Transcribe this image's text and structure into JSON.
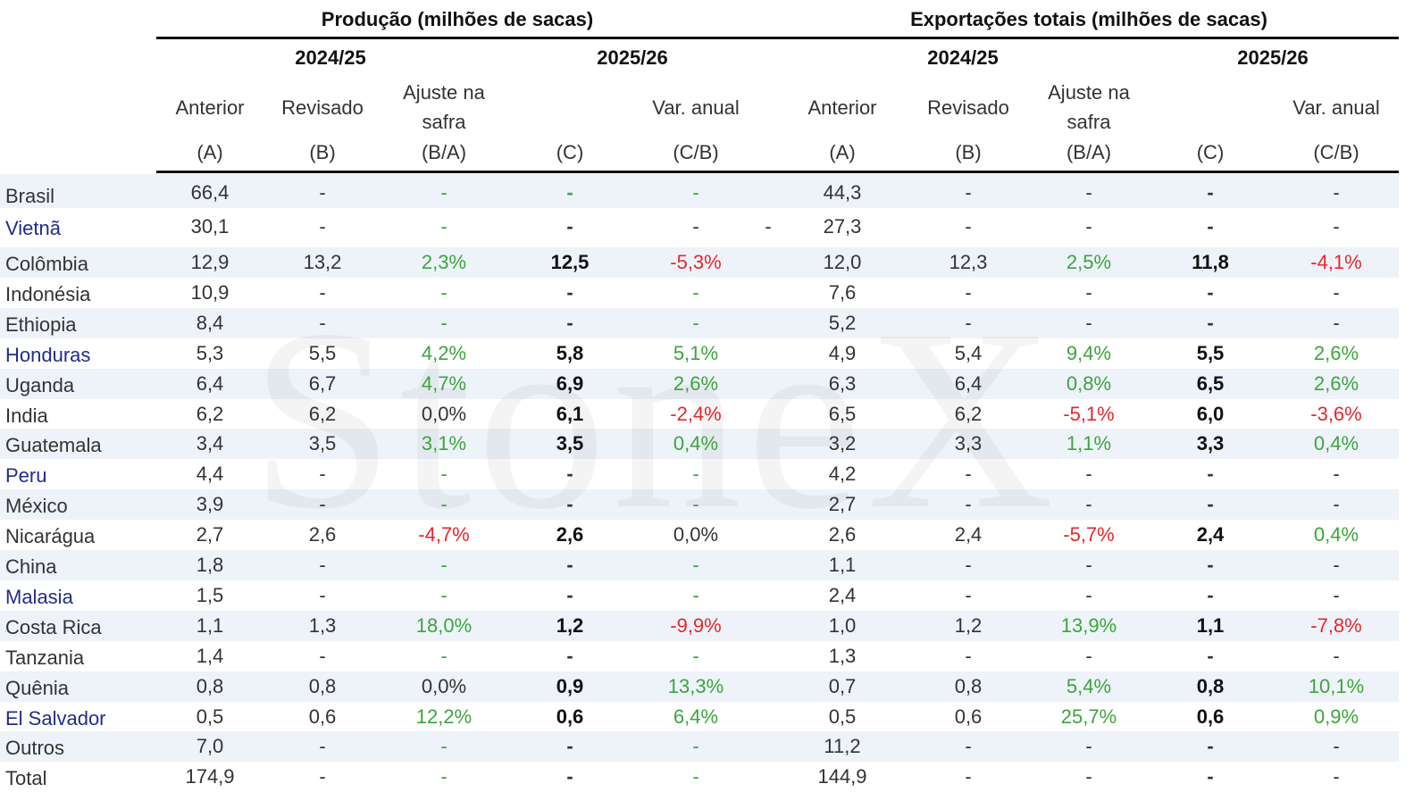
{
  "header": {
    "groups": [
      "Produção (milhões de sacas)",
      "Exportações totais (milhões de sacas)"
    ],
    "years": [
      "2024/25",
      "2025/26",
      "2024/25",
      "2025/26"
    ],
    "columns": [
      [
        "Anterior",
        "(A)"
      ],
      [
        "Revisado",
        "(B)"
      ],
      [
        "Ajuste na",
        "safra",
        "(B/A)"
      ],
      [
        "(C)"
      ],
      [
        "Var. anual",
        "(C/B)"
      ],
      [
        "Anterior",
        "(A)"
      ],
      [
        "Revisado",
        "(B)"
      ],
      [
        "Ajuste na",
        "safra",
        "(B/A)"
      ],
      [
        "(C)"
      ],
      [
        "Var. anual",
        "(C/B)"
      ]
    ]
  },
  "palette": {
    "k": "#333333",
    "g": "#3ca53c",
    "r": "#e8262a",
    "b": "#1f2d8c",
    "d": "#111111"
  },
  "bold_columns": [
    3,
    8
  ],
  "rows": [
    {
      "name": "Brasil",
      "name_tone": "k",
      "cells": [
        "66,4",
        "-",
        "-",
        "-",
        "-",
        "44,3",
        "-",
        "-",
        "-",
        "-"
      ],
      "tones": "kkgggkkkkk"
    },
    {
      "name": "Vietnã",
      "name_tone": "b",
      "cells": [
        "30,1",
        "-",
        "-",
        "-",
        "-",
        "27,3",
        "-",
        "-",
        "-",
        "-"
      ],
      "extra": "-",
      "tones": "kkgkkkkkkk"
    },
    {
      "name": "Colômbia",
      "name_tone": "k",
      "cells": [
        "12,9",
        "13,2",
        "2,3%",
        "12,5",
        "-5,3%",
        "12,0",
        "12,3",
        "2,5%",
        "11,8",
        "-4,1%"
      ],
      "tones": "kkgdrkkgdr"
    },
    {
      "name": "Indonésia",
      "name_tone": "k",
      "cells": [
        "10,9",
        "-",
        "-",
        "-",
        "-",
        "7,6",
        "-",
        "-",
        "-",
        "-"
      ],
      "tones": "kkgkgkkkkk"
    },
    {
      "name": "Ethiopia",
      "name_tone": "k",
      "cells": [
        "8,4",
        "-",
        "-",
        "-",
        "-",
        "5,2",
        "-",
        "-",
        "-",
        "-"
      ],
      "tones": "kkgkgkkkkk"
    },
    {
      "name": "Honduras",
      "name_tone": "b",
      "cells": [
        "5,3",
        "5,5",
        "4,2%",
        "5,8",
        "5,1%",
        "4,9",
        "5,4",
        "9,4%",
        "5,5",
        "2,6%"
      ],
      "tones": "kkgdgkkgdg"
    },
    {
      "name": "Uganda",
      "name_tone": "k",
      "cells": [
        "6,4",
        "6,7",
        "4,7%",
        "6,9",
        "2,6%",
        "6,3",
        "6,4",
        "0,8%",
        "6,5",
        "2,6%"
      ],
      "tones": "kkgdgkkgdg"
    },
    {
      "name": "India",
      "name_tone": "k",
      "cells": [
        "6,2",
        "6,2",
        "0,0%",
        "6,1",
        "-2,4%",
        "6,5",
        "6,2",
        "-5,1%",
        "6,0",
        "-3,6%"
      ],
      "tones": "kkkdrkkrdr"
    },
    {
      "name": "Guatemala",
      "name_tone": "k",
      "cells": [
        "3,4",
        "3,5",
        "3,1%",
        "3,5",
        "0,4%",
        "3,2",
        "3,3",
        "1,1%",
        "3,3",
        "0,4%"
      ],
      "tones": "kkgdgkkgdg"
    },
    {
      "name": "Peru",
      "name_tone": "b",
      "cells": [
        "4,4",
        "-",
        "-",
        "-",
        "-",
        "4,2",
        "-",
        "-",
        "-",
        "-"
      ],
      "tones": "kkgkgkkkkk"
    },
    {
      "name": "México",
      "name_tone": "k",
      "cells": [
        "3,9",
        "-",
        "-",
        "-",
        "-",
        "2,7",
        "-",
        "-",
        "-",
        "-"
      ],
      "tones": "kkgkgkkkkk"
    },
    {
      "name": "Nicarágua",
      "name_tone": "k",
      "cells": [
        "2,7",
        "2,6",
        "-4,7%",
        "2,6",
        "0,0%",
        "2,6",
        "2,4",
        "-5,7%",
        "2,4",
        "0,4%"
      ],
      "tones": "kkrdkkkrdg"
    },
    {
      "name": "China",
      "name_tone": "k",
      "cells": [
        "1,8",
        "-",
        "-",
        "-",
        "-",
        "1,1",
        "-",
        "-",
        "-",
        "-"
      ],
      "tones": "kkgkgkkkkk"
    },
    {
      "name": "Malasia",
      "name_tone": "b",
      "cells": [
        "1,5",
        "-",
        "-",
        "-",
        "-",
        "2,4",
        "-",
        "-",
        "-",
        "-"
      ],
      "tones": "kkgkgkkkkk"
    },
    {
      "name": "Costa Rica",
      "name_tone": "k",
      "cells": [
        "1,1",
        "1,3",
        "18,0%",
        "1,2",
        "-9,9%",
        "1,0",
        "1,2",
        "13,9%",
        "1,1",
        "-7,8%"
      ],
      "tones": "kkgdrkkgdr"
    },
    {
      "name": "Tanzania",
      "name_tone": "k",
      "cells": [
        "1,4",
        "-",
        "-",
        "-",
        "-",
        "1,3",
        "-",
        "-",
        "-",
        "-"
      ],
      "tones": "kkgkgkkkkk"
    },
    {
      "name": "Quênia",
      "name_tone": "k",
      "cells": [
        "0,8",
        "0,8",
        "0,0%",
        "0,9",
        "13,3%",
        "0,7",
        "0,8",
        "5,4%",
        "0,8",
        "10,1%"
      ],
      "tones": "kkkdgkkgdg"
    },
    {
      "name": "El Salvador",
      "name_tone": "b",
      "cells": [
        "0,5",
        "0,6",
        "12,2%",
        "0,6",
        "6,4%",
        "0,5",
        "0,6",
        "25,7%",
        "0,6",
        "0,9%"
      ],
      "tones": "kkgdgkkgdg"
    },
    {
      "name": "Outros",
      "name_tone": "k",
      "cells": [
        "7,0",
        "-",
        "-",
        "-",
        "-",
        "11,2",
        "-",
        "-",
        "-",
        "-"
      ],
      "tones": "kkgkgkkkkk"
    },
    {
      "name": "Total",
      "name_tone": "k",
      "cells": [
        "174,9",
        "-",
        "-",
        "-",
        "-",
        "144,9",
        "-",
        "-",
        "-",
        "-"
      ],
      "tones": "kkgkgkkkkk"
    }
  ],
  "watermark": "StoneX"
}
